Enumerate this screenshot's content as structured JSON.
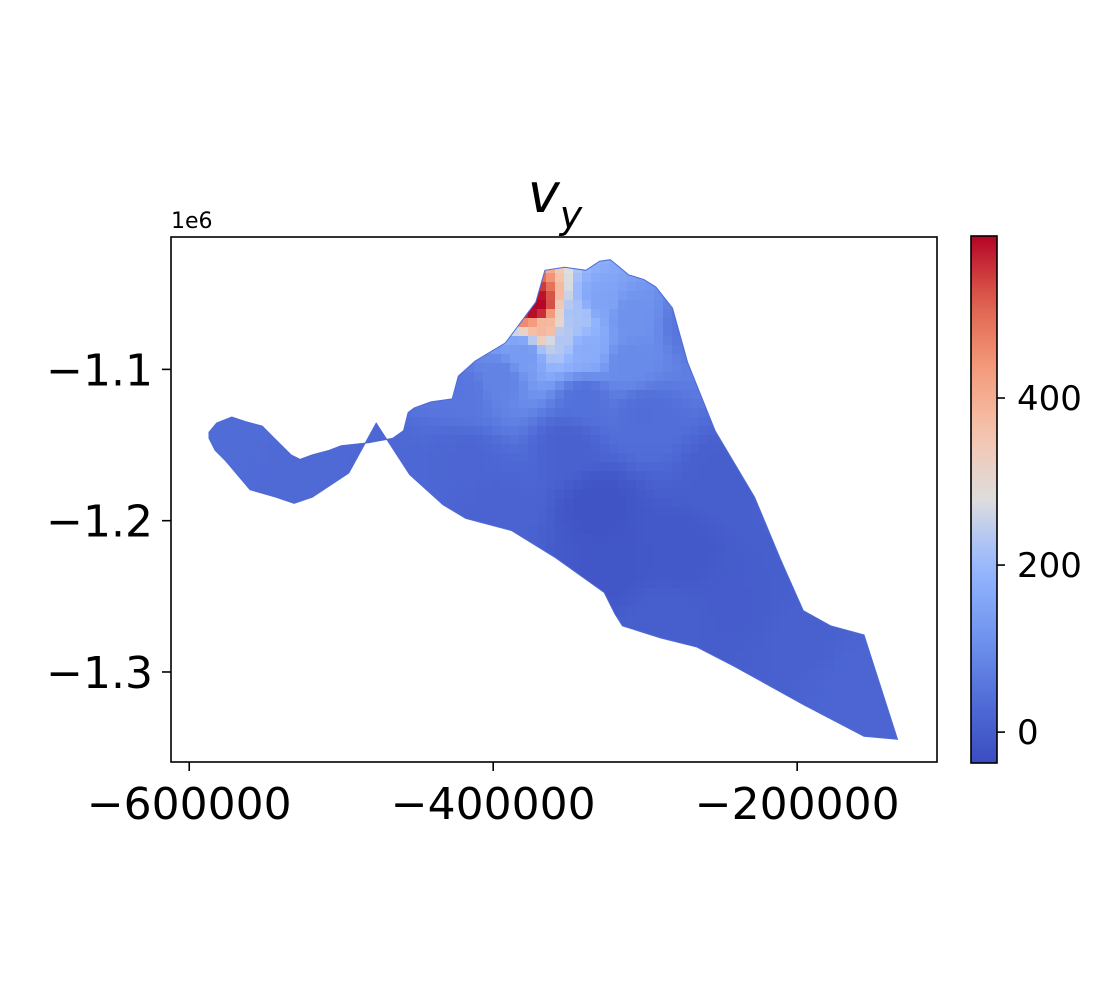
{
  "chart_data": {
    "type": "heatmap",
    "title": "v",
    "title_subscript": "y",
    "xlabel": "",
    "ylabel": "",
    "x_ticks": [
      -600000,
      -400000,
      -200000
    ],
    "x_tick_labels": [
      "−600000",
      "−400000",
      "−200000"
    ],
    "y_ticks": [
      -1.1,
      -1.2,
      -1.3
    ],
    "y_tick_labels": [
      "−1.1",
      "−1.2",
      "−1.3"
    ],
    "y_offset_text": "1e6",
    "xlim": [
      -612000,
      -108000
    ],
    "ylim": [
      -1.3595,
      -1.0125
    ],
    "colorbar": {
      "cmap": "coolwarm",
      "vmin": -37,
      "vmax": 594,
      "ticks": [
        0,
        200,
        400
      ],
      "tick_labels": [
        "0",
        "200",
        "400"
      ]
    },
    "domain_outline": [
      [
        -587000,
        -1.1415
      ],
      [
        -582000,
        -1.1355
      ],
      [
        -572000,
        -1.1315
      ],
      [
        -563000,
        -1.1345
      ],
      [
        -552000,
        -1.1375
      ],
      [
        -544000,
        -1.1455
      ],
      [
        -533000,
        -1.1565
      ],
      [
        -527000,
        -1.1595
      ],
      [
        -519000,
        -1.1565
      ],
      [
        -508000,
        -1.1535
      ],
      [
        -500000,
        -1.1505
      ],
      [
        -482000,
        -1.1485
      ],
      [
        -466000,
        -1.1455
      ],
      [
        -459000,
        -1.1405
      ],
      [
        -456000,
        -1.1285
      ],
      [
        -452000,
        -1.1255
      ],
      [
        -441000,
        -1.1215
      ],
      [
        -427000,
        -1.1195
      ],
      [
        -423000,
        -1.1045
      ],
      [
        -412000,
        -1.0945
      ],
      [
        -392000,
        -1.0825
      ],
      [
        -372000,
        -1.0555
      ],
      [
        -366000,
        -1.0345
      ],
      [
        -353000,
        -1.0325
      ],
      [
        -339000,
        -1.0345
      ],
      [
        -330000,
        -1.0285
      ],
      [
        -323000,
        -1.0275
      ],
      [
        -318000,
        -1.0315
      ],
      [
        -311000,
        -1.0375
      ],
      [
        -301000,
        -1.0405
      ],
      [
        -293000,
        -1.0455
      ],
      [
        -282000,
        -1.0595
      ],
      [
        -272000,
        -1.0955
      ],
      [
        -254000,
        -1.1405
      ],
      [
        -228000,
        -1.1845
      ],
      [
        -211000,
        -1.2255
      ],
      [
        -196000,
        -1.2595
      ],
      [
        -178000,
        -1.2695
      ],
      [
        -156000,
        -1.2755
      ],
      [
        -134000,
        -1.3445
      ],
      [
        -134000,
        -1.3445
      ],
      [
        -156000,
        -1.3425
      ],
      [
        -196000,
        -1.3215
      ],
      [
        -241000,
        -1.2965
      ],
      [
        -266000,
        -1.2835
      ],
      [
        -290000,
        -1.2775
      ],
      [
        -315000,
        -1.2695
      ],
      [
        -320000,
        -1.2615
      ],
      [
        -327000,
        -1.2475
      ],
      [
        -359000,
        -1.2245
      ],
      [
        -388000,
        -1.2065
      ],
      [
        -418000,
        -1.1985
      ],
      [
        -433000,
        -1.1895
      ],
      [
        -455000,
        -1.1695
      ],
      [
        -477000,
        -1.1355
      ],
      [
        -495000,
        -1.1685
      ],
      [
        -519000,
        -1.1845
      ],
      [
        -531000,
        -1.1885
      ],
      [
        -543000,
        -1.1845
      ],
      [
        -560000,
        -1.1795
      ],
      [
        -576000,
        -1.1605
      ],
      [
        -583000,
        -1.1535
      ],
      [
        -587000,
        -1.1455
      ]
    ],
    "field_samples": [
      {
        "x": -372000,
        "y": -1.0585,
        "v": 594
      },
      {
        "x": -366000,
        "y": -1.072,
        "v": 380
      },
      {
        "x": -355000,
        "y": -1.08,
        "v": 230
      },
      {
        "x": -340000,
        "y": -1.087,
        "v": 170
      },
      {
        "x": -345000,
        "y": -1.065,
        "v": 220
      },
      {
        "x": -330000,
        "y": -1.055,
        "v": 150
      },
      {
        "x": -310000,
        "y": -1.065,
        "v": 110
      },
      {
        "x": -310000,
        "y": -1.095,
        "v": 95
      },
      {
        "x": -380000,
        "y": -1.09,
        "v": 130
      },
      {
        "x": -395000,
        "y": -1.105,
        "v": 80
      },
      {
        "x": -420000,
        "y": -1.115,
        "v": 55
      },
      {
        "x": -340000,
        "y": -1.12,
        "v": 45
      },
      {
        "x": -300000,
        "y": -1.13,
        "v": 40
      },
      {
        "x": -270000,
        "y": -1.07,
        "v": 55
      },
      {
        "x": -350000,
        "y": -1.15,
        "v": 10
      },
      {
        "x": -330000,
        "y": -1.19,
        "v": -20
      },
      {
        "x": -320000,
        "y": -1.23,
        "v": -15
      },
      {
        "x": -280000,
        "y": -1.22,
        "v": -10
      },
      {
        "x": -250000,
        "y": -1.17,
        "v": 5
      },
      {
        "x": -240000,
        "y": -1.26,
        "v": 0
      },
      {
        "x": -200000,
        "y": -1.28,
        "v": 10
      },
      {
        "x": -160000,
        "y": -1.31,
        "v": 20
      },
      {
        "x": -420000,
        "y": -1.16,
        "v": 20
      },
      {
        "x": -470000,
        "y": -1.16,
        "v": 25
      },
      {
        "x": -530000,
        "y": -1.17,
        "v": 30
      },
      {
        "x": -575000,
        "y": -1.145,
        "v": 35
      },
      {
        "x": -400000,
        "y": -1.19,
        "v": 15
      },
      {
        "x": -290000,
        "y": -1.265,
        "v": 5
      }
    ]
  }
}
